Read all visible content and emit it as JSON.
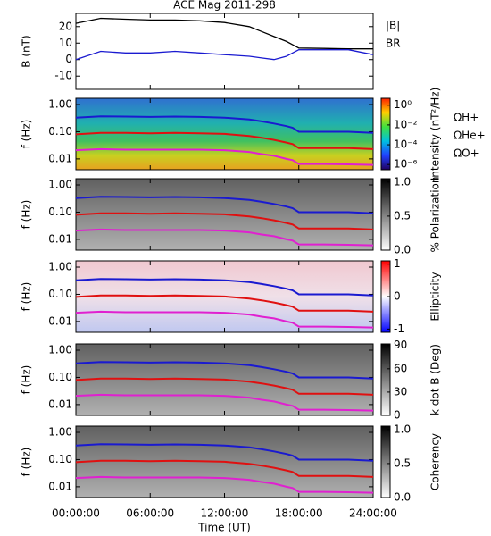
{
  "chart_data": [
    {
      "type": "line",
      "title": "ACE Mag 2011-298",
      "ylabel": "B (nT)",
      "xlim": [
        0,
        24
      ],
      "xticks": [
        0,
        6,
        12,
        18,
        24
      ],
      "ylim": [
        -18,
        28
      ],
      "yticks": [
        -10,
        0,
        10,
        20
      ],
      "x": [
        0,
        2,
        4,
        6,
        8,
        10,
        12,
        14,
        15,
        16,
        17,
        17.5,
        18,
        20,
        22,
        24
      ],
      "series": [
        {
          "name": "|B|",
          "color": "#000000",
          "values": [
            22,
            25,
            24.5,
            24,
            24,
            23.5,
            22.5,
            20,
            17,
            14,
            11,
            9,
            7,
            6.8,
            6.5,
            6.5
          ]
        },
        {
          "name": "BR",
          "color": "#1a1ad0",
          "values": [
            0,
            5,
            4,
            4,
            5,
            4,
            3,
            2,
            1,
            0,
            2,
            4,
            6,
            6,
            6,
            3
          ]
        }
      ]
    },
    {
      "type": "spectrogram",
      "ylabel": "f (Hz)",
      "log": true,
      "colormap": "rainbow",
      "xlim": [
        0,
        24
      ],
      "xticks": [
        0,
        6,
        12,
        18,
        24
      ],
      "ylim": [
        0.004,
        1.7
      ],
      "yticks": [
        {
          "value": 0.01,
          "label": "0.01"
        },
        {
          "value": 0.1,
          "label": "0.10"
        },
        {
          "value": 1,
          "label": "1.00"
        }
      ],
      "clabel": "Intensity (nT²/Hz)",
      "clog": true,
      "clim": [
        3e-07,
        5
      ],
      "cticks": [
        {
          "value": 1,
          "label": "10⁰"
        },
        {
          "value": 0.01,
          "label": "10⁻²"
        },
        {
          "value": 0.0001,
          "label": "10⁻⁴"
        },
        {
          "value": 1e-06,
          "label": "10⁻⁶"
        }
      ],
      "legend": true,
      "x": [
        0,
        2,
        4,
        6,
        8,
        10,
        12,
        14,
        15,
        16,
        17,
        17.5,
        18,
        20,
        22,
        24
      ],
      "series": [
        {
          "name": "ΩH+",
          "color": "#1a1ad0",
          "values": [
            0.33,
            0.37,
            0.36,
            0.35,
            0.36,
            0.35,
            0.33,
            0.28,
            0.24,
            0.2,
            0.16,
            0.14,
            0.1,
            0.1,
            0.1,
            0.09
          ]
        },
        {
          "name": "ΩHe+",
          "color": "#e01010",
          "values": [
            0.08,
            0.09,
            0.09,
            0.087,
            0.09,
            0.087,
            0.083,
            0.07,
            0.06,
            0.05,
            0.04,
            0.035,
            0.025,
            0.025,
            0.025,
            0.023
          ]
        },
        {
          "name": "ΩO+",
          "color": "#e020d0",
          "values": [
            0.021,
            0.023,
            0.022,
            0.022,
            0.022,
            0.022,
            0.021,
            0.018,
            0.015,
            0.013,
            0.01,
            0.009,
            0.0065,
            0.0065,
            0.0063,
            0.006
          ]
        }
      ]
    },
    {
      "type": "spectrogram",
      "ylabel": "f (Hz)",
      "log": true,
      "colormap": "gray",
      "xlim": [
        0,
        24
      ],
      "xticks": [
        0,
        6,
        12,
        18,
        24
      ],
      "ylim": [
        0.004,
        1.7
      ],
      "yticks": [
        {
          "value": 0.01,
          "label": "0.01"
        },
        {
          "value": 0.1,
          "label": "0.10"
        },
        {
          "value": 1,
          "label": "1.00"
        }
      ],
      "clabel": "% Polarization",
      "clim": [
        0,
        1.05
      ],
      "cticks": [
        {
          "value": 0,
          "label": "0.0"
        },
        {
          "value": 0.5,
          "label": "0.5"
        },
        {
          "value": 1,
          "label": "1.0"
        }
      ],
      "x": [
        0,
        2,
        4,
        6,
        8,
        10,
        12,
        14,
        15,
        16,
        17,
        17.5,
        18,
        20,
        22,
        24
      ],
      "series": [
        {
          "color": "#1a1ad0",
          "values": [
            0.33,
            0.37,
            0.36,
            0.35,
            0.36,
            0.35,
            0.33,
            0.28,
            0.24,
            0.2,
            0.16,
            0.14,
            0.1,
            0.1,
            0.1,
            0.09
          ]
        },
        {
          "color": "#e01010",
          "values": [
            0.08,
            0.09,
            0.09,
            0.087,
            0.09,
            0.087,
            0.083,
            0.07,
            0.06,
            0.05,
            0.04,
            0.035,
            0.025,
            0.025,
            0.025,
            0.023
          ]
        },
        {
          "color": "#e020d0",
          "values": [
            0.021,
            0.023,
            0.022,
            0.022,
            0.022,
            0.022,
            0.021,
            0.018,
            0.015,
            0.013,
            0.01,
            0.009,
            0.0065,
            0.0065,
            0.0063,
            0.006
          ]
        }
      ]
    },
    {
      "type": "spectrogram",
      "ylabel": "f (Hz)",
      "log": true,
      "colormap": "bwr",
      "xlim": [
        0,
        24
      ],
      "xticks": [
        0,
        6,
        12,
        18,
        24
      ],
      "ylim": [
        0.004,
        1.7
      ],
      "yticks": [
        {
          "value": 0.01,
          "label": "0.01"
        },
        {
          "value": 0.1,
          "label": "0.10"
        },
        {
          "value": 1,
          "label": "1.00"
        }
      ],
      "clabel": "Ellipticity",
      "clim": [
        -1.1,
        1.1
      ],
      "cticks": [
        -1,
        0,
        1
      ],
      "x": [
        0,
        2,
        4,
        6,
        8,
        10,
        12,
        14,
        15,
        16,
        17,
        17.5,
        18,
        20,
        22,
        24
      ],
      "series": [
        {
          "color": "#1a1ad0",
          "values": [
            0.33,
            0.37,
            0.36,
            0.35,
            0.36,
            0.35,
            0.33,
            0.28,
            0.24,
            0.2,
            0.16,
            0.14,
            0.1,
            0.1,
            0.1,
            0.09
          ]
        },
        {
          "color": "#e01010",
          "values": [
            0.08,
            0.09,
            0.09,
            0.087,
            0.09,
            0.087,
            0.083,
            0.07,
            0.06,
            0.05,
            0.04,
            0.035,
            0.025,
            0.025,
            0.025,
            0.023
          ]
        },
        {
          "color": "#e020d0",
          "values": [
            0.021,
            0.023,
            0.022,
            0.022,
            0.022,
            0.022,
            0.021,
            0.018,
            0.015,
            0.013,
            0.01,
            0.009,
            0.0065,
            0.0065,
            0.0063,
            0.006
          ]
        }
      ]
    },
    {
      "type": "spectrogram",
      "ylabel": "f (Hz)",
      "log": true,
      "colormap": "gray",
      "xlim": [
        0,
        24
      ],
      "xticks": [
        0,
        6,
        12,
        18,
        24
      ],
      "ylim": [
        0.004,
        1.7
      ],
      "yticks": [
        {
          "value": 0.01,
          "label": "0.01"
        },
        {
          "value": 0.1,
          "label": "0.10"
        },
        {
          "value": 1,
          "label": "1.00"
        }
      ],
      "clabel": "k dot B (Deg)",
      "clim": [
        0,
        92
      ],
      "cticks": [
        0,
        30,
        60,
        90
      ],
      "x": [
        0,
        2,
        4,
        6,
        8,
        10,
        12,
        14,
        15,
        16,
        17,
        17.5,
        18,
        20,
        22,
        24
      ],
      "series": [
        {
          "color": "#1a1ad0",
          "values": [
            0.33,
            0.37,
            0.36,
            0.35,
            0.36,
            0.35,
            0.33,
            0.28,
            0.24,
            0.2,
            0.16,
            0.14,
            0.1,
            0.1,
            0.1,
            0.09
          ]
        },
        {
          "color": "#e01010",
          "values": [
            0.08,
            0.09,
            0.09,
            0.087,
            0.09,
            0.087,
            0.083,
            0.07,
            0.06,
            0.05,
            0.04,
            0.035,
            0.025,
            0.025,
            0.025,
            0.023
          ]
        },
        {
          "color": "#e020d0",
          "values": [
            0.021,
            0.023,
            0.022,
            0.022,
            0.022,
            0.022,
            0.021,
            0.018,
            0.015,
            0.013,
            0.01,
            0.009,
            0.0065,
            0.0065,
            0.0063,
            0.006
          ]
        }
      ]
    },
    {
      "type": "spectrogram",
      "ylabel": "f (Hz)",
      "log": true,
      "colormap": "gray",
      "xlim": [
        0,
        24
      ],
      "ylim": [
        0.004,
        1.7
      ],
      "xticks": [
        {
          "value": 0,
          "label": "00:00:00"
        },
        {
          "value": 6,
          "label": "06:00:00"
        },
        {
          "value": 12,
          "label": "12:00:00"
        },
        {
          "value": 18,
          "label": "18:00:00"
        },
        {
          "value": 24,
          "label": "24:00:00"
        }
      ],
      "xlabel": "Time (UT)",
      "yticks": [
        {
          "value": 0.01,
          "label": "0.01"
        },
        {
          "value": 0.1,
          "label": "0.10"
        },
        {
          "value": 1,
          "label": "1.00"
        }
      ],
      "clabel": "Coherency",
      "clim": [
        0,
        1.05
      ],
      "cticks": [
        {
          "value": 0,
          "label": "0.0"
        },
        {
          "value": 0.5,
          "label": "0.5"
        },
        {
          "value": 1,
          "label": "1.0"
        }
      ],
      "x": [
        0,
        2,
        4,
        6,
        8,
        10,
        12,
        14,
        15,
        16,
        17,
        17.5,
        18,
        20,
        22,
        24
      ],
      "series": [
        {
          "color": "#1a1ad0",
          "values": [
            0.33,
            0.37,
            0.36,
            0.35,
            0.36,
            0.35,
            0.33,
            0.28,
            0.24,
            0.2,
            0.16,
            0.14,
            0.1,
            0.1,
            0.1,
            0.09
          ]
        },
        {
          "color": "#e01010",
          "values": [
            0.08,
            0.09,
            0.09,
            0.087,
            0.09,
            0.087,
            0.083,
            0.07,
            0.06,
            0.05,
            0.04,
            0.035,
            0.025,
            0.025,
            0.025,
            0.023
          ]
        },
        {
          "color": "#e020d0",
          "values": [
            0.021,
            0.023,
            0.022,
            0.022,
            0.022,
            0.022,
            0.021,
            0.018,
            0.015,
            0.013,
            0.01,
            0.009,
            0.0065,
            0.0065,
            0.0063,
            0.006
          ]
        }
      ]
    }
  ]
}
